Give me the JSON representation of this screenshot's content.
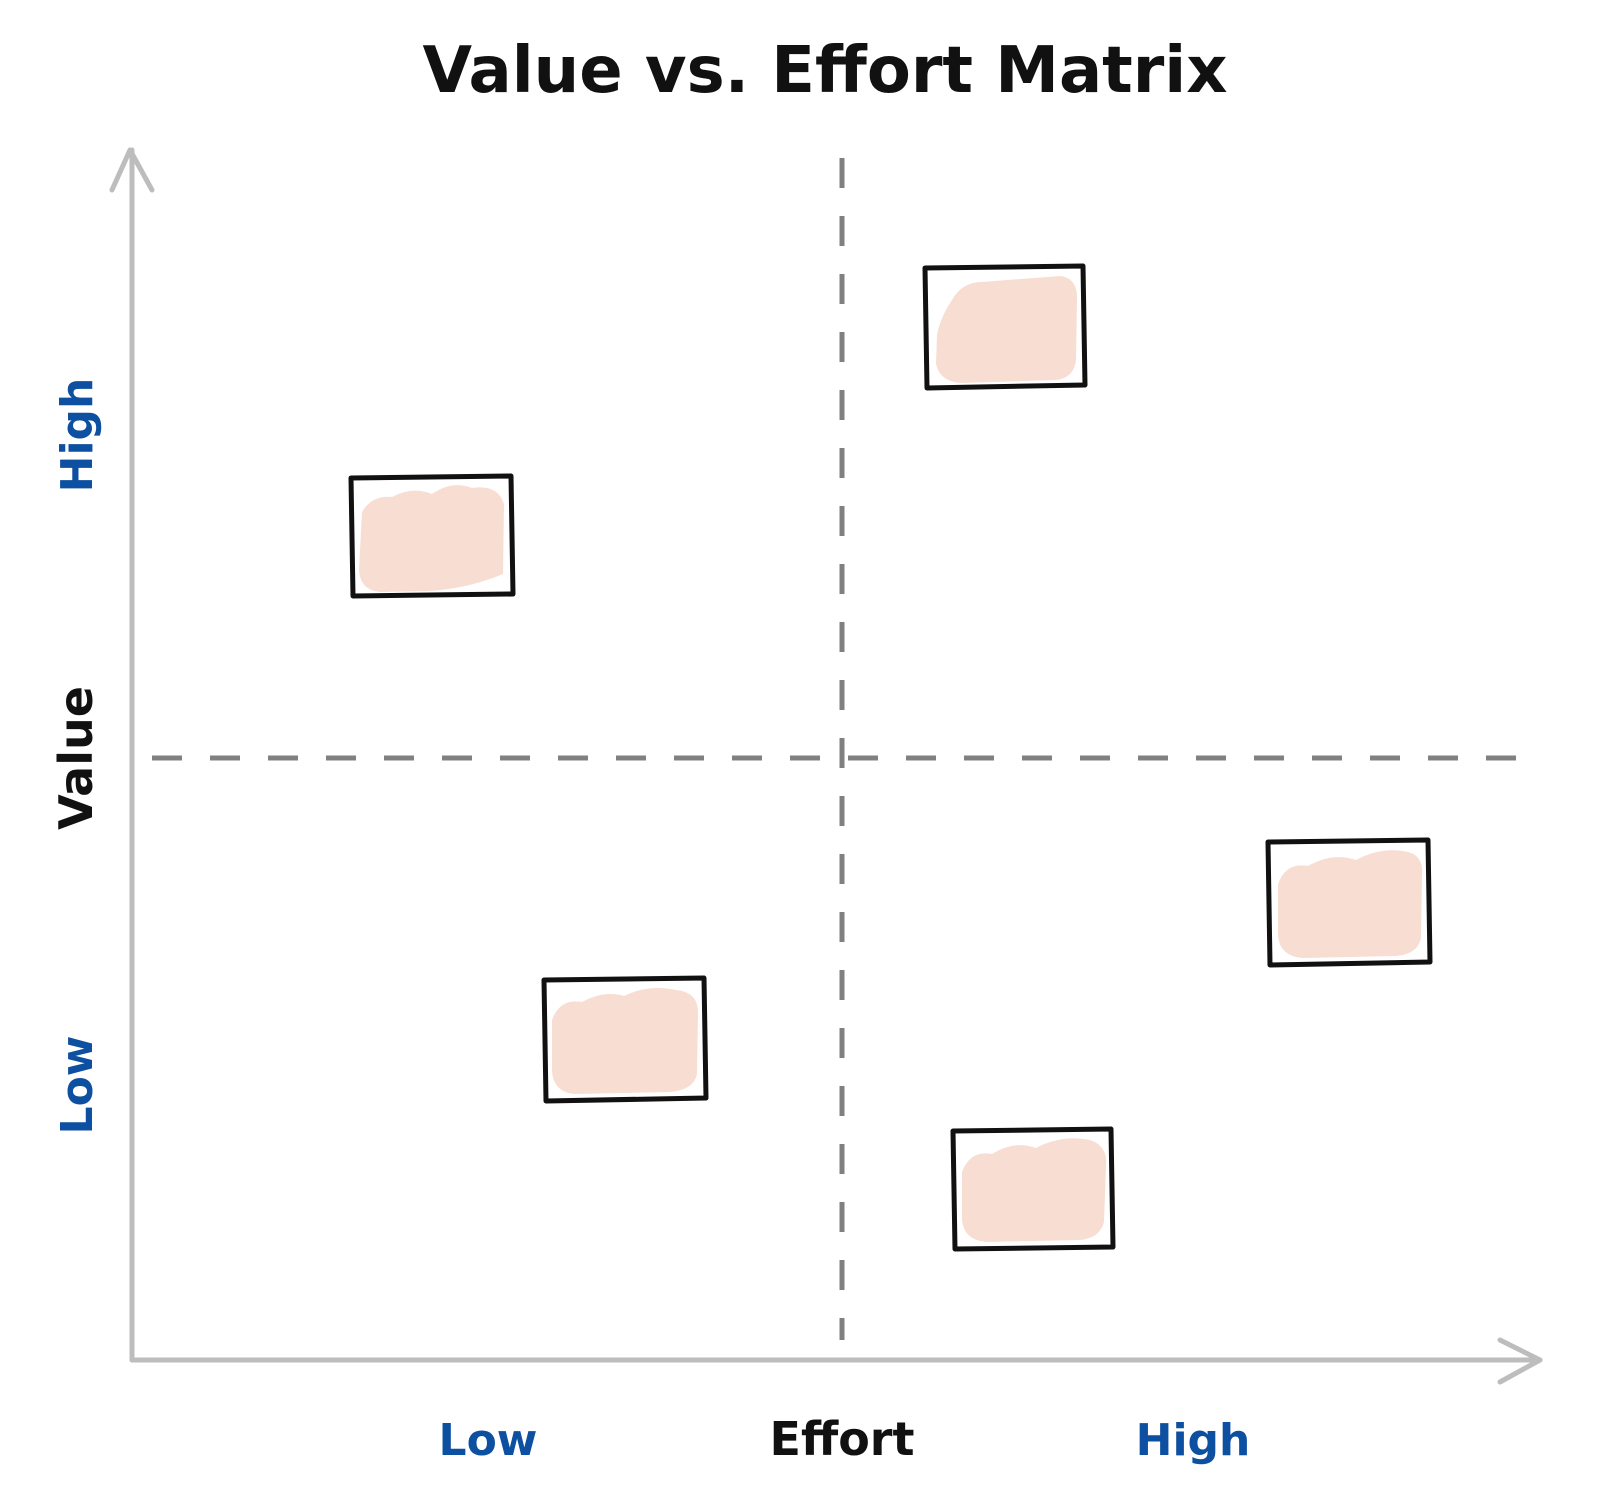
{
  "title": "Value vs. Effort Matrix",
  "axes": {
    "x": {
      "title": "Effort",
      "low_label": "Low",
      "high_label": "High"
    },
    "y": {
      "title": "Value",
      "low_label": "Low",
      "high_label": "High"
    }
  },
  "colors": {
    "level_label": "#0d4fa0",
    "card_fill": "#f8ddd3",
    "card_border": "#111111",
    "axis": "#bdbdbd",
    "divider": "#808080"
  },
  "cards": [
    {
      "id": "card-1",
      "quadrant": "high-value-low-effort"
    },
    {
      "id": "card-2",
      "quadrant": "high-value-high-effort"
    },
    {
      "id": "card-3",
      "quadrant": "low-value-low-effort"
    },
    {
      "id": "card-4",
      "quadrant": "low-value-high-effort"
    },
    {
      "id": "card-5",
      "quadrant": "low-value-high-effort"
    }
  ]
}
